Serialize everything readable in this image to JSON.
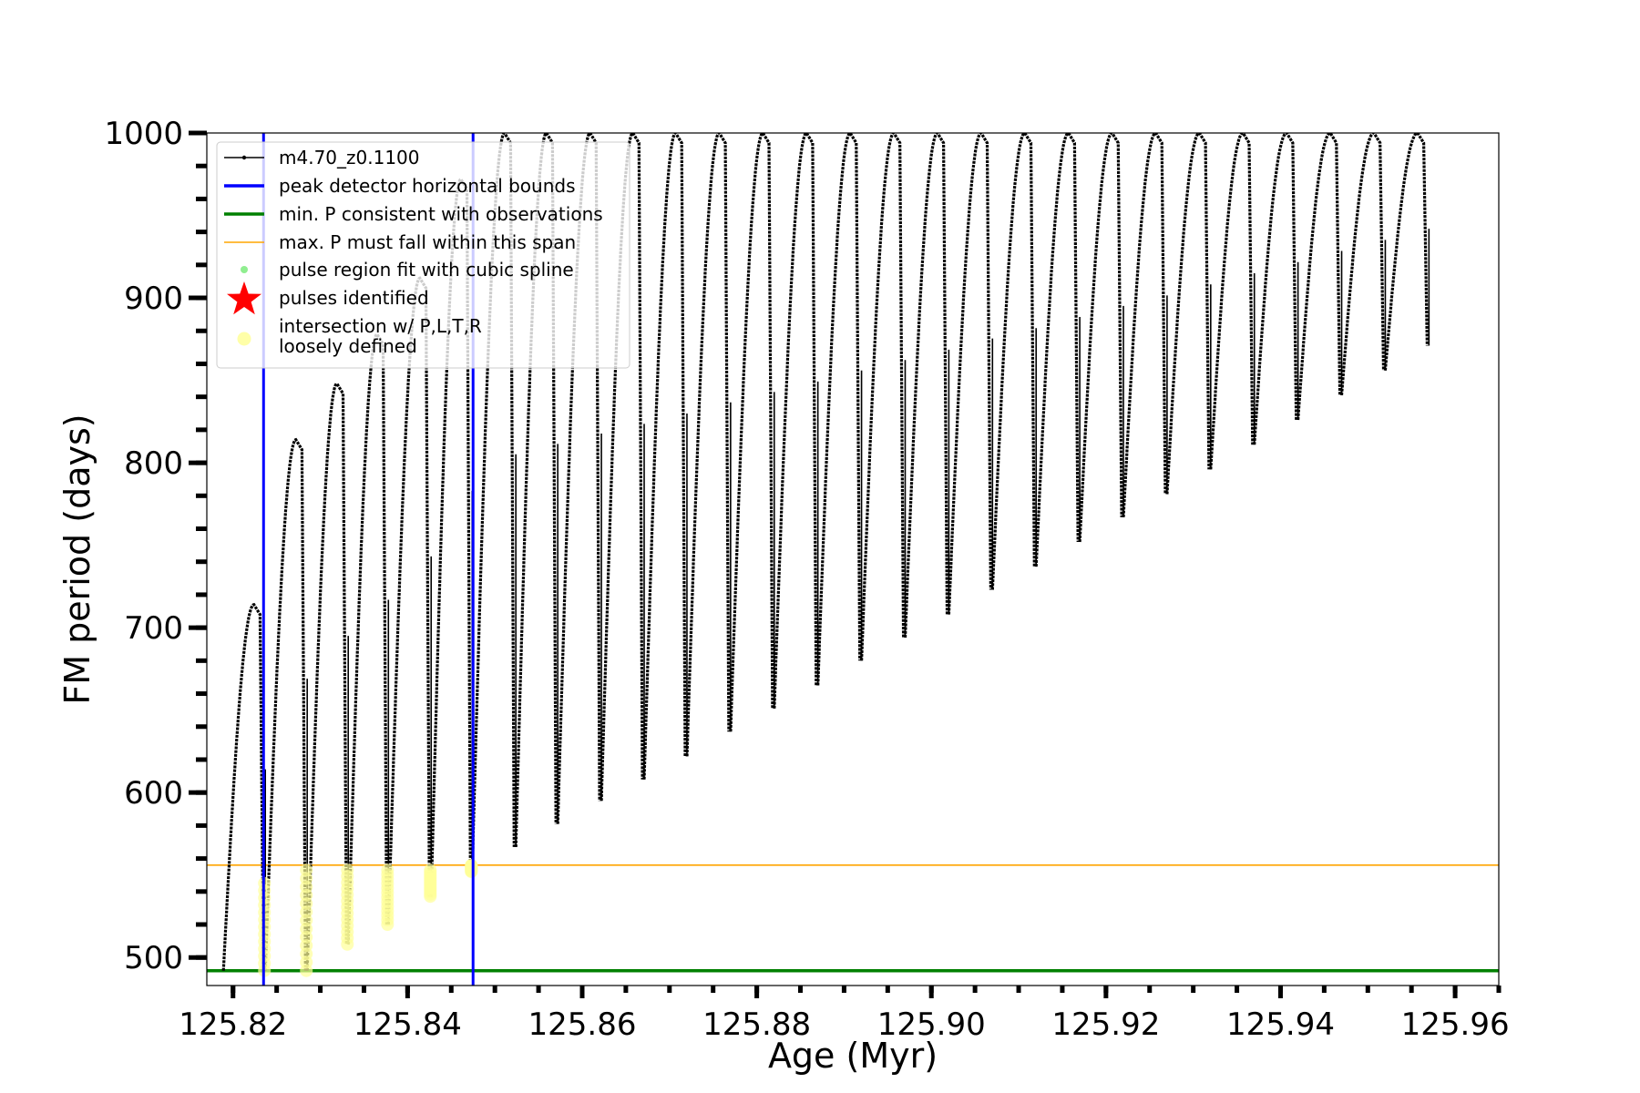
{
  "chart_data": {
    "type": "line",
    "xlabel": "Age (Myr)",
    "ylabel": "FM period (days)",
    "xlim": [
      125.817,
      125.965
    ],
    "ylim": [
      483,
      1000
    ],
    "x_ticks": [
      125.82,
      125.84,
      125.86,
      125.88,
      125.9,
      125.92,
      125.94,
      125.96
    ],
    "x_tick_labels": [
      "125.82",
      "125.84",
      "125.86",
      "125.88",
      "125.90",
      "125.92",
      "125.94",
      "125.96"
    ],
    "y_ticks": [
      500,
      600,
      700,
      800,
      900,
      1000
    ],
    "y_tick_labels": [
      "500",
      "600",
      "700",
      "800",
      "900",
      "1000"
    ],
    "legend_position": "top-left",
    "legend": [
      {
        "key": "model",
        "label": "m4.70_z0.1100",
        "color": "#000000",
        "kind": "line-marker"
      },
      {
        "key": "bounds",
        "label": "peak detector horizontal bounds",
        "color": "#0000ff",
        "kind": "line"
      },
      {
        "key": "minp",
        "label": "min. P consistent with observations",
        "color": "#008000",
        "kind": "line"
      },
      {
        "key": "maxp",
        "label": "max. P must fall within this span",
        "color": "#ffa500",
        "kind": "thin-line"
      },
      {
        "key": "fit",
        "label": "pulse region fit with cubic spline",
        "color": "#90ee90",
        "kind": "dot"
      },
      {
        "key": "pulses",
        "label": "pulses identified",
        "color": "#ff0000",
        "kind": "star"
      },
      {
        "key": "intersect",
        "label": "intersection w/ P,L,T,R",
        "label2": "loosely defined",
        "color": "#ffff99",
        "kind": "circle"
      }
    ],
    "vertical_bounds": [
      125.8235,
      125.8475
    ],
    "min_period": 492,
    "max_period_span": 556,
    "pulses": [
      {
        "x": 125.8235,
        "min": 492,
        "peak": 714,
        "drop": 1.0
      },
      {
        "x": 125.8283,
        "min": 492,
        "peak": 814,
        "drop": 1.0
      },
      {
        "x": 125.833,
        "min": 508,
        "peak": 848,
        "drop": 1.0
      },
      {
        "x": 125.8376,
        "min": 520,
        "peak": 878,
        "drop": 1.0
      },
      {
        "x": 125.8425,
        "min": 537,
        "peak": 912,
        "drop": 1.0
      },
      {
        "x": 125.8472,
        "min": 552,
        "peak": 972,
        "drop": 1.0
      },
      {
        "x": 125.8522,
        "min": 567,
        "peak": 1000,
        "drop": 1.0
      },
      {
        "x": 125.857,
        "min": 581,
        "peak": 1000,
        "drop": 1.0
      },
      {
        "x": 125.862,
        "min": 595,
        "peak": 1000,
        "drop": 1.0
      },
      {
        "x": 125.8669,
        "min": 608,
        "peak": 1000,
        "drop": 1.0
      },
      {
        "x": 125.8718,
        "min": 622,
        "peak": 1000,
        "drop": 1.0
      },
      {
        "x": 125.8768,
        "min": 637,
        "peak": 1000,
        "drop": 1.0
      },
      {
        "x": 125.8818,
        "min": 651,
        "peak": 1000,
        "drop": 1.0
      },
      {
        "x": 125.8868,
        "min": 665,
        "peak": 1000,
        "drop": 1.0
      },
      {
        "x": 125.8918,
        "min": 680,
        "peak": 1000,
        "drop": 1.0
      },
      {
        "x": 125.8968,
        "min": 694,
        "peak": 1000,
        "drop": 1.0
      },
      {
        "x": 125.9018,
        "min": 708,
        "peak": 1000,
        "drop": 1.0
      },
      {
        "x": 125.9068,
        "min": 723,
        "peak": 1000,
        "drop": 1.0
      },
      {
        "x": 125.9118,
        "min": 737,
        "peak": 1000,
        "drop": 1.0
      },
      {
        "x": 125.9168,
        "min": 752,
        "peak": 1000,
        "drop": 1.0
      },
      {
        "x": 125.9218,
        "min": 767,
        "peak": 1000,
        "drop": 1.0
      },
      {
        "x": 125.9268,
        "min": 781,
        "peak": 1000,
        "drop": 1.0
      },
      {
        "x": 125.9318,
        "min": 796,
        "peak": 1000,
        "drop": 1.0
      },
      {
        "x": 125.9368,
        "min": 811,
        "peak": 1000,
        "drop": 1.0
      },
      {
        "x": 125.9418,
        "min": 826,
        "peak": 1000,
        "drop": 1.0
      },
      {
        "x": 125.9468,
        "min": 841,
        "peak": 1000,
        "drop": 1.0
      },
      {
        "x": 125.9518,
        "min": 856,
        "peak": 1000,
        "drop": 1.0
      },
      {
        "x": 125.9568,
        "min": 871,
        "peak": 1000,
        "drop": 1.0
      }
    ],
    "intersections": [
      {
        "x": 125.8235,
        "y_from": 492,
        "y_to": 545
      },
      {
        "x": 125.8283,
        "y_from": 492,
        "y_to": 553
      },
      {
        "x": 125.833,
        "y_from": 508,
        "y_to": 553
      },
      {
        "x": 125.8376,
        "y_from": 520,
        "y_to": 553
      },
      {
        "x": 125.8425,
        "y_from": 537,
        "y_to": 553
      },
      {
        "x": 125.8472,
        "y_from": 552,
        "y_to": 556
      }
    ]
  }
}
